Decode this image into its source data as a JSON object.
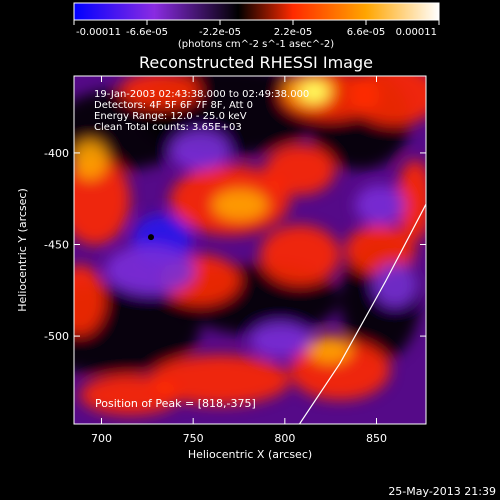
{
  "chart_data": {
    "type": "heatmap",
    "title": "Reconstructed RHESSI Image",
    "xlabel": "Heliocentric X (arcsec)",
    "ylabel": "Heliocentric Y (arcsec)",
    "xlim": [
      685,
      877
    ],
    "ylim": [
      -548,
      -358
    ],
    "x_ticks": [
      700,
      750,
      800,
      850
    ],
    "y_ticks": [
      -400,
      -450,
      -500
    ],
    "colorbar": {
      "range": [
        -0.00011,
        0.00011
      ],
      "ticks": [
        -0.00011,
        -6.6e-05,
        -2.2e-05,
        2.2e-05,
        6.6e-05,
        0.00011
      ],
      "tick_labels": [
        "-0.00011",
        "-6.6e-05",
        "-2.2e-05",
        "2.2e-05",
        "6.6e-05",
        "0.00011"
      ],
      "unit_label": "(photons cm^-2 s^-1 asec^-2)",
      "colors": [
        "#0000ff",
        "#8a2be2",
        "#000000",
        "#ff2a00",
        "#ffa500",
        "#ffffff"
      ]
    },
    "annotations": [
      "19-Jan-2003 02:43:38.000 to 02:49:38.000",
      "Detectors: 4F 5F 6F 7F 8F, Att 0",
      "Energy Range: 12.0 - 25.0 keV",
      "Clean    Total counts: 3.65E+03"
    ],
    "peak_label": "Position of Peak = [818,-375]",
    "peak_position": [
      818,
      -375
    ],
    "min_marker": [
      727,
      -446
    ],
    "limb_curve": [
      [
        808,
        -548
      ],
      [
        830,
        -515
      ],
      [
        855,
        -470
      ],
      [
        877,
        -428
      ]
    ]
  },
  "footer_date": "25-May-2013 21:39"
}
